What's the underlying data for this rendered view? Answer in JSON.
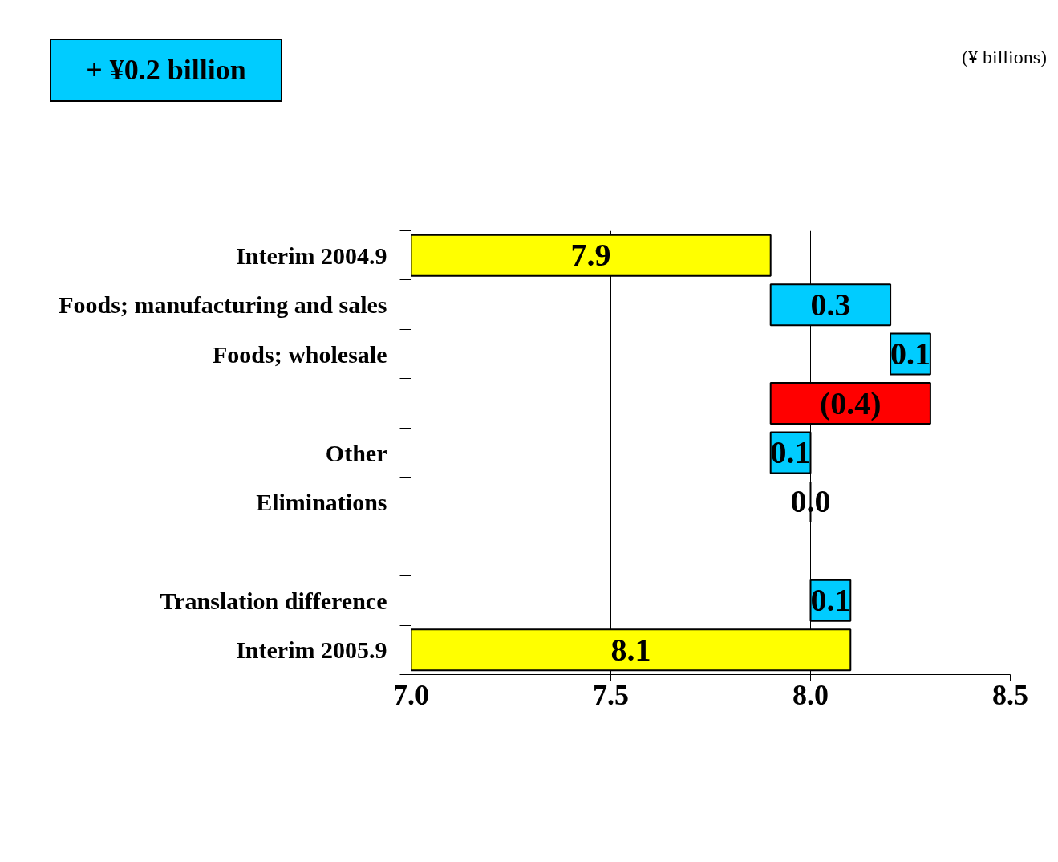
{
  "chart_data": {
    "type": "bar",
    "orientation": "horizontal",
    "categories": [
      "Interim 2004.9",
      "Foods; manufacturing and sales",
      "Foods; wholesale",
      null,
      "Other",
      "Eliminations",
      null,
      "Translation difference",
      "Interim 2005.9"
    ],
    "values": [
      7.9,
      0.3,
      0.1,
      -0.4,
      0.1,
      0.0,
      null,
      0.1,
      8.1
    ],
    "base": [
      0,
      7.9,
      8.2,
      8.3,
      7.9,
      8.0,
      null,
      8.0,
      0
    ],
    "colors": [
      "#ffff00",
      "#00ccff",
      "#00ccff",
      "#ff0000",
      "#00ccff",
      "#000000",
      null,
      "#00ccff",
      "#ffff00"
    ],
    "value_labels": [
      "7.9",
      "0.3",
      "0.1",
      "(0.4)",
      "0.1",
      "0.0",
      null,
      "0.1",
      "8.1"
    ],
    "xlim": [
      7.0,
      8.5
    ],
    "xticks": [
      {
        "value": 7.0,
        "label": "7.0"
      },
      {
        "value": 7.5,
        "label": "7.5"
      },
      {
        "value": 8.0,
        "label": "8.0"
      },
      {
        "value": 8.5,
        "label": "8.5"
      }
    ],
    "grid": "x",
    "annotations": [
      "+ ¥0.2 billion",
      "(¥ billions)"
    ]
  }
}
